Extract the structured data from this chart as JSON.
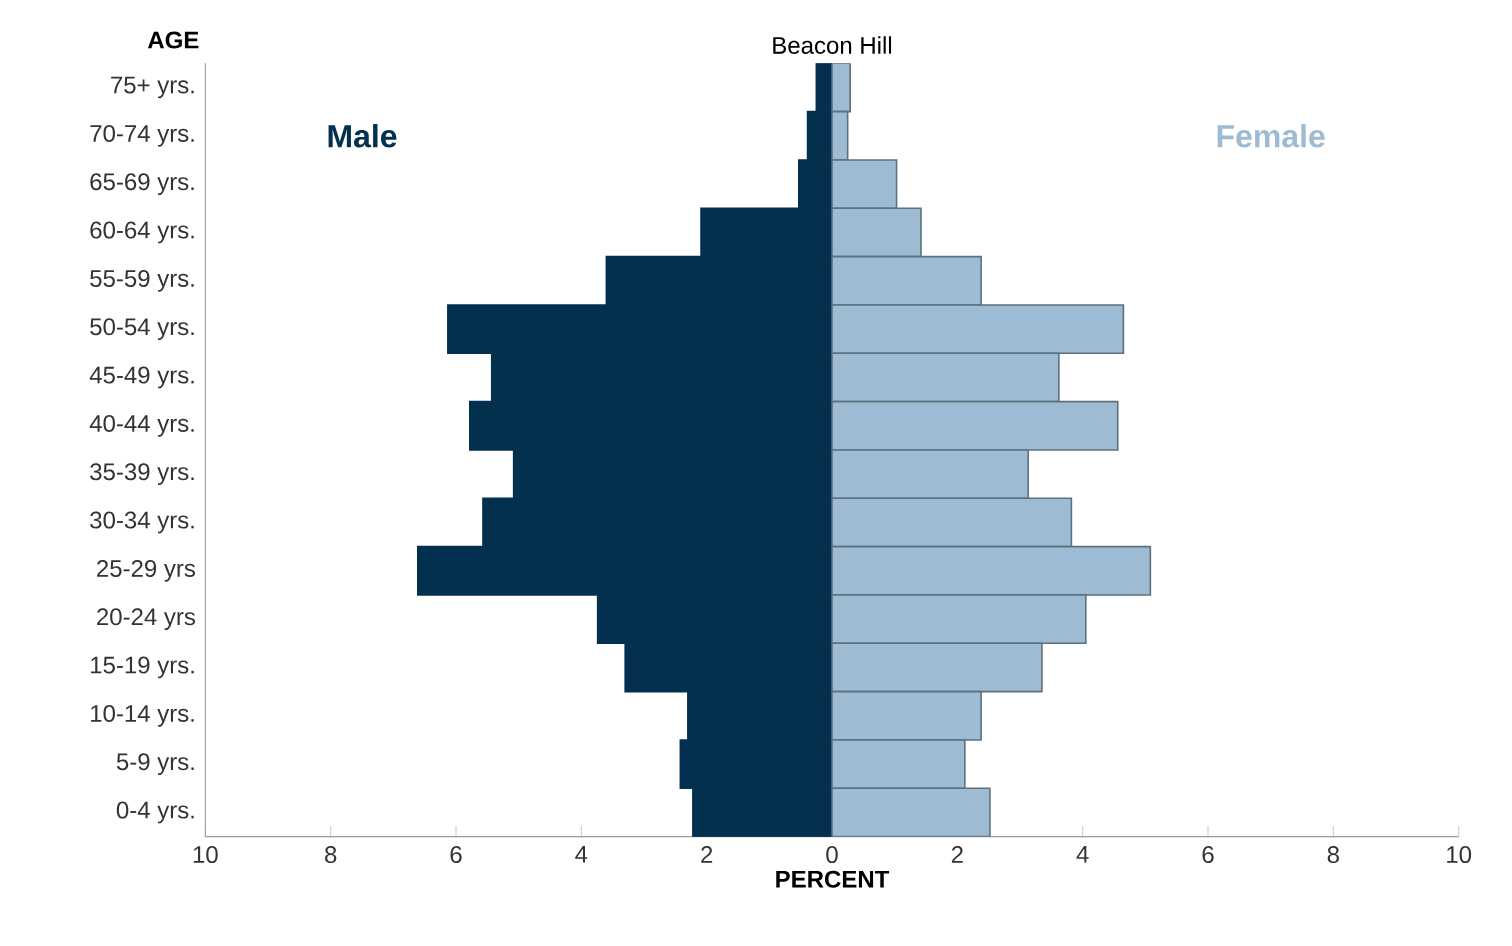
{
  "chart_data": {
    "type": "bar",
    "orientation": "horizontal",
    "stacked": true,
    "title": "Beacon Hill",
    "xlabel": "PERCENT",
    "ylabel": "AGE",
    "categories": [
      "75+ yrs.",
      "70-74 yrs.",
      "65-69 yrs.",
      "60-64 yrs.",
      "55-59 yrs.",
      "50-54 yrs.",
      "45-49 yrs.",
      "40-44 yrs.",
      "35-39 yrs.",
      "30-34 yrs.",
      "25-29 yrs",
      "20-24 yrs",
      "15-19 yrs.",
      "10-14 yrs.",
      "5-9 yrs.",
      "0-4 yrs."
    ],
    "series": [
      {
        "name": "Male",
        "color": "#04304f",
        "values": [
          -0.25,
          -0.39,
          -0.53,
          -2.09,
          -3.6,
          -6.13,
          -5.43,
          -5.78,
          -5.08,
          -5.57,
          -6.61,
          -3.74,
          -3.3,
          -2.3,
          -2.42,
          -2.22
        ]
      },
      {
        "name": "Female",
        "color": "#9dbbd2",
        "values": [
          0.29,
          0.25,
          1.03,
          1.42,
          2.38,
          4.65,
          3.62,
          4.56,
          3.13,
          3.82,
          5.08,
          4.05,
          3.35,
          2.38,
          2.12,
          2.52
        ]
      }
    ],
    "xlim": [
      -10,
      10
    ],
    "xticks": [
      {
        "value": -10,
        "label": "10"
      },
      {
        "value": -8,
        "label": "8"
      },
      {
        "value": -6,
        "label": "6"
      },
      {
        "value": -4,
        "label": "4"
      },
      {
        "value": -2,
        "label": "2"
      },
      0,
      2,
      4,
      6,
      8,
      10
    ],
    "grid": false,
    "legend": false
  }
}
